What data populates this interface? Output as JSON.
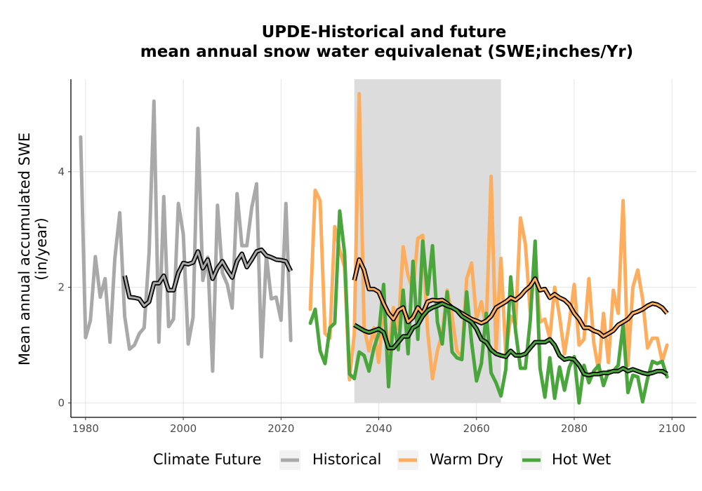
{
  "chart_data": {
    "type": "line",
    "title_line1": "UPDE-Historical and future",
    "title_line2": "mean annual snow water equivalenat (SWE;inches/Yr)",
    "xlabel": "",
    "ylabel_line1": "Mean annual accumulated SWE",
    "ylabel_line2": "(in/year)",
    "xlim": [
      1977,
      2105
    ],
    "ylim": [
      -0.25,
      5.6
    ],
    "xticks": [
      1980,
      2000,
      2020,
      2040,
      2060,
      2080,
      2100
    ],
    "yticks": [
      0,
      2,
      4
    ],
    "grid": true,
    "shaded_period": [
      2035,
      2065
    ],
    "legend": {
      "title": "Climate Future",
      "position": "bottom",
      "entries": [
        "Historical",
        "Warm Dry",
        "Hot Wet"
      ]
    },
    "colors": {
      "Historical": "#a9a9a9",
      "Warm Dry": "#fdad5e",
      "Hot Wet": "#4aa63c",
      "smooth": "#000000",
      "shade": "#dcdcdc"
    },
    "series": [
      {
        "name": "Historical",
        "x": [
          1979,
          1980,
          1981,
          1982,
          1983,
          1984,
          1985,
          1986,
          1987,
          1988,
          1989,
          1990,
          1991,
          1992,
          1993,
          1994,
          1995,
          1996,
          1997,
          1998,
          1999,
          2000,
          2001,
          2002,
          2003,
          2004,
          2005,
          2006,
          2007,
          2008,
          2009,
          2010,
          2011,
          2012,
          2013,
          2014,
          2015,
          2016,
          2017,
          2018,
          2019,
          2020,
          2021,
          2022
        ],
        "values": [
          4.6,
          1.13,
          1.43,
          2.53,
          1.83,
          2.15,
          1.05,
          2.5,
          3.29,
          1.5,
          0.93,
          1.0,
          1.2,
          1.3,
          2.6,
          5.22,
          1.05,
          3.57,
          1.32,
          1.45,
          3.45,
          2.92,
          1.02,
          1.48,
          4.75,
          2.12,
          2.52,
          0.55,
          3.42,
          2.25,
          2.05,
          1.64,
          3.62,
          2.72,
          2.72,
          3.38,
          3.79,
          0.8,
          2.55,
          1.8,
          1.83,
          1.43,
          3.45,
          1.08
        ]
      },
      {
        "name": "Historical smoothed",
        "x": [
          1988,
          1989,
          1990,
          1991,
          1992,
          1993,
          1994,
          1995,
          1996,
          1997,
          1998,
          1999,
          2000,
          2001,
          2002,
          2003,
          2004,
          2005,
          2006,
          2007,
          2008,
          2009,
          2010,
          2011,
          2012,
          2013,
          2014,
          2015,
          2016,
          2017,
          2018,
          2019,
          2020,
          2021,
          2022
        ],
        "values": [
          2.2,
          1.83,
          1.82,
          1.8,
          1.68,
          1.75,
          2.07,
          2.07,
          2.2,
          1.95,
          1.95,
          2.25,
          2.42,
          2.4,
          2.43,
          2.62,
          2.33,
          2.48,
          2.15,
          2.33,
          2.45,
          2.3,
          2.17,
          2.45,
          2.58,
          2.35,
          2.48,
          2.62,
          2.65,
          2.55,
          2.52,
          2.48,
          2.47,
          2.45,
          2.28
        ]
      },
      {
        "name": "Warm Dry",
        "x": [
          2026,
          2027,
          2028,
          2029,
          2030,
          2031,
          2032,
          2033,
          2034,
          2035,
          2036,
          2037,
          2038,
          2039,
          2040,
          2041,
          2042,
          2043,
          2044,
          2045,
          2046,
          2047,
          2048,
          2049,
          2050,
          2051,
          2052,
          2053,
          2054,
          2055,
          2056,
          2057,
          2058,
          2059,
          2060,
          2061,
          2062,
          2063,
          2064,
          2065,
          2066,
          2067,
          2068,
          2069,
          2070,
          2071,
          2072,
          2073,
          2074,
          2075,
          2076,
          2077,
          2078,
          2079,
          2080,
          2081,
          2082,
          2083,
          2084,
          2085,
          2086,
          2087,
          2088,
          2089,
          2090,
          2091,
          2092,
          2093,
          2094,
          2095,
          2096,
          2097,
          2098,
          2099
        ],
        "values": [
          1.62,
          3.68,
          3.5,
          1.2,
          1.12,
          3.05,
          2.65,
          2.35,
          0.4,
          1.2,
          5.35,
          1.3,
          0.9,
          1.3,
          0.7,
          1.7,
          0.82,
          1.65,
          1.28,
          2.7,
          2.2,
          1.95,
          2.85,
          2.9,
          1.25,
          0.42,
          0.9,
          1.2,
          1.95,
          1.5,
          0.9,
          0.8,
          2.15,
          2.42,
          1.45,
          1.75,
          1.3,
          3.92,
          0.92,
          2.5,
          0.85,
          1.5,
          1.35,
          3.2,
          2.75,
          1.57,
          2.47,
          1.4,
          1.45,
          1.12,
          2.0,
          1.5,
          0.85,
          1.4,
          2.05,
          1.0,
          1.1,
          2.15,
          1.05,
          0.55,
          1.55,
          0.7,
          1.95,
          1.55,
          3.5,
          0.65,
          2.0,
          2.3,
          1.8,
          0.95,
          1.12,
          1.12,
          0.72,
          1.0
        ]
      },
      {
        "name": "Warm Dry smoothed",
        "x": [
          2035,
          2036,
          2037,
          2038,
          2039,
          2040,
          2041,
          2042,
          2043,
          2044,
          2045,
          2046,
          2047,
          2048,
          2049,
          2050,
          2051,
          2052,
          2053,
          2054,
          2055,
          2056,
          2057,
          2058,
          2059,
          2060,
          2061,
          2062,
          2063,
          2064,
          2065,
          2066,
          2067,
          2068,
          2069,
          2070,
          2071,
          2072,
          2073,
          2074,
          2075,
          2076,
          2077,
          2078,
          2079,
          2080,
          2081,
          2082,
          2083,
          2084,
          2085,
          2086,
          2087,
          2088,
          2089,
          2090,
          2091,
          2092,
          2093,
          2094,
          2095,
          2096,
          2097,
          2098,
          2099
        ],
        "values": [
          2.12,
          2.48,
          2.3,
          1.97,
          1.97,
          1.92,
          1.72,
          1.55,
          1.45,
          1.6,
          1.65,
          1.4,
          1.48,
          1.65,
          1.55,
          1.75,
          1.78,
          1.77,
          1.78,
          1.72,
          1.65,
          1.6,
          1.55,
          1.5,
          1.45,
          1.42,
          1.38,
          1.42,
          1.5,
          1.65,
          1.7,
          1.75,
          1.82,
          1.78,
          1.85,
          1.95,
          2.02,
          2.15,
          1.95,
          1.97,
          1.82,
          1.88,
          1.82,
          1.78,
          1.7,
          1.55,
          1.45,
          1.3,
          1.3,
          1.25,
          1.22,
          1.15,
          1.2,
          1.25,
          1.35,
          1.4,
          1.45,
          1.55,
          1.58,
          1.62,
          1.68,
          1.72,
          1.7,
          1.65,
          1.55
        ]
      },
      {
        "name": "Hot Wet",
        "x": [
          2026,
          2027,
          2028,
          2029,
          2030,
          2031,
          2032,
          2033,
          2034,
          2035,
          2036,
          2037,
          2038,
          2039,
          2040,
          2041,
          2042,
          2043,
          2044,
          2045,
          2046,
          2047,
          2048,
          2049,
          2050,
          2051,
          2052,
          2053,
          2054,
          2055,
          2056,
          2057,
          2058,
          2059,
          2060,
          2061,
          2062,
          2063,
          2064,
          2065,
          2066,
          2067,
          2068,
          2069,
          2070,
          2071,
          2072,
          2073,
          2074,
          2075,
          2076,
          2077,
          2078,
          2079,
          2080,
          2081,
          2082,
          2083,
          2084,
          2085,
          2086,
          2087,
          2088,
          2089,
          2090,
          2091,
          2092,
          2093,
          2094,
          2095,
          2096,
          2097,
          2098,
          2099
        ],
        "values": [
          1.38,
          1.62,
          0.9,
          0.68,
          1.3,
          1.38,
          3.32,
          2.6,
          0.5,
          0.42,
          0.88,
          0.82,
          0.55,
          0.95,
          1.2,
          2.05,
          0.28,
          1.45,
          0.92,
          1.95,
          0.85,
          2.45,
          1.1,
          2.8,
          1.88,
          2.72,
          1.4,
          1.02,
          1.92,
          0.88,
          0.78,
          0.75,
          1.92,
          1.05,
          0.38,
          0.68,
          1.55,
          0.52,
          0.35,
          0.12,
          0.58,
          2.18,
          1.25,
          0.6,
          0.6,
          1.42,
          2.8,
          0.6,
          0.1,
          0.78,
          0.08,
          0.62,
          0.22,
          0.62,
          0.8,
          0.0,
          0.65,
          0.35,
          0.55,
          0.65,
          0.3,
          0.55,
          0.55,
          0.65,
          1.35,
          0.18,
          0.48,
          0.45,
          0.02,
          0.42,
          0.72,
          0.68,
          0.72,
          0.45
        ]
      },
      {
        "name": "Hot Wet smoothed",
        "x": [
          2035,
          2036,
          2037,
          2038,
          2039,
          2040,
          2041,
          2042,
          2043,
          2044,
          2045,
          2046,
          2047,
          2048,
          2049,
          2050,
          2051,
          2052,
          2053,
          2054,
          2055,
          2056,
          2057,
          2058,
          2059,
          2060,
          2061,
          2062,
          2063,
          2064,
          2065,
          2066,
          2067,
          2068,
          2069,
          2070,
          2071,
          2072,
          2073,
          2074,
          2075,
          2076,
          2077,
          2078,
          2079,
          2080,
          2081,
          2082,
          2083,
          2084,
          2085,
          2086,
          2087,
          2088,
          2089,
          2090,
          2091,
          2092,
          2093,
          2094,
          2095,
          2096,
          2097,
          2098,
          2099
        ],
        "values": [
          1.35,
          1.3,
          1.25,
          1.22,
          1.25,
          1.28,
          1.22,
          0.95,
          0.95,
          1.05,
          1.15,
          1.15,
          1.3,
          1.35,
          1.5,
          1.6,
          1.65,
          1.68,
          1.72,
          1.68,
          1.65,
          1.6,
          1.5,
          1.45,
          1.4,
          1.28,
          1.1,
          1.05,
          0.92,
          0.85,
          0.82,
          0.8,
          0.9,
          0.82,
          0.82,
          0.85,
          0.95,
          1.05,
          1.05,
          1.05,
          1.1,
          1.0,
          0.82,
          0.75,
          0.77,
          0.75,
          0.65,
          0.5,
          0.48,
          0.5,
          0.5,
          0.52,
          0.52,
          0.55,
          0.55,
          0.6,
          0.55,
          0.58,
          0.55,
          0.52,
          0.5,
          0.52,
          0.55,
          0.55,
          0.5
        ]
      }
    ]
  }
}
